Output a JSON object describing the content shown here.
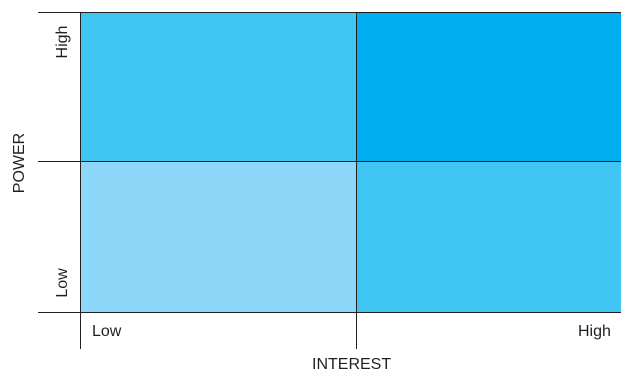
{
  "matrix": {
    "axes": {
      "y": {
        "label": "POWER",
        "high": "High",
        "low": "Low"
      },
      "x": {
        "label": "INTEREST",
        "low": "Low",
        "high": "High"
      }
    },
    "quadrant_colors": {
      "high_power_low_interest": "#40c6f3",
      "high_power_high_interest": "#00aeef",
      "low_power_low_interest": "#8dd8f8",
      "low_power_high_interest": "#40c6f3"
    },
    "line_color": "#231f20"
  }
}
